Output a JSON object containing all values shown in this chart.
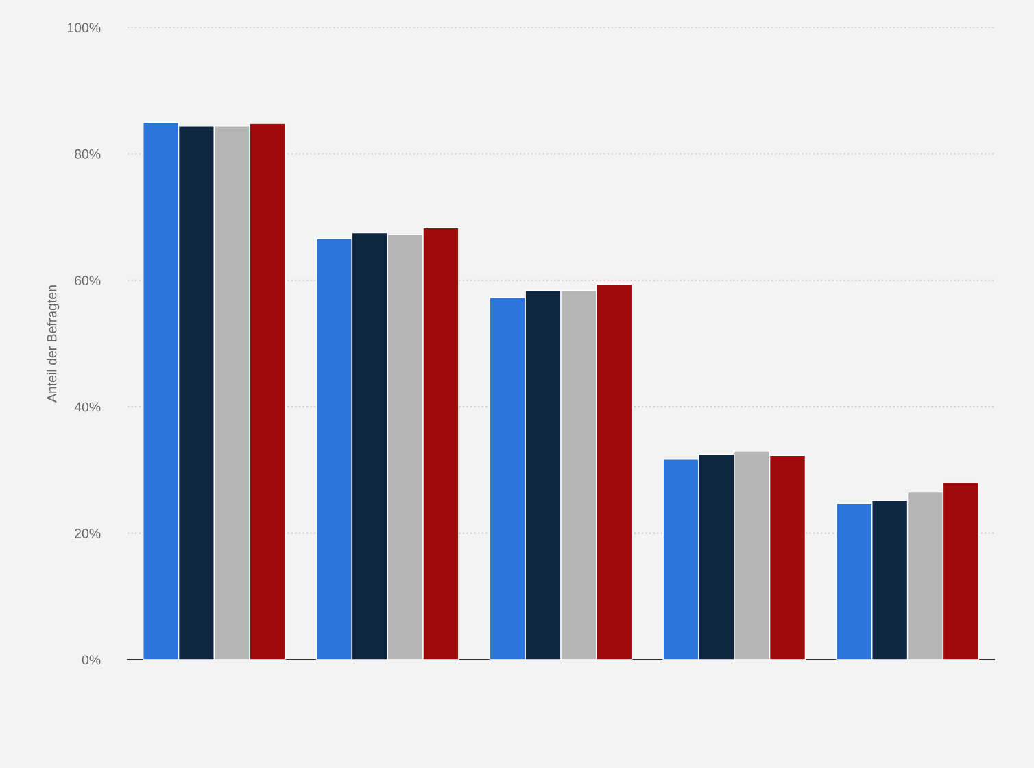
{
  "chart_data": {
    "type": "bar",
    "ylabel": "Anteil der Befragten",
    "categories": [
      null,
      null,
      null,
      null,
      null
    ],
    "series": [
      {
        "color": "#2a76dd",
        "values": [
          85.0,
          66.6,
          57.3,
          31.7,
          24.7
        ]
      },
      {
        "color": "#0e2640",
        "values": [
          84.4,
          67.5,
          58.4,
          32.5,
          25.2
        ]
      },
      {
        "color": "#b5b5b5",
        "values": [
          84.4,
          67.2,
          58.4,
          33.0,
          26.5
        ]
      },
      {
        "color": "#a10a0a",
        "values": [
          84.8,
          68.3,
          59.4,
          32.3,
          28.0
        ]
      }
    ],
    "ylim": [
      0,
      100
    ],
    "yticks": [
      {
        "value": 0,
        "label": "0%"
      },
      {
        "value": 20,
        "label": "20%"
      },
      {
        "value": 40,
        "label": "40%"
      },
      {
        "value": 60,
        "label": "60%"
      },
      {
        "value": 80,
        "label": "80%"
      },
      {
        "value": 100,
        "label": "100%"
      }
    ],
    "grid": "y",
    "tick_labels": "y",
    "legend": false
  }
}
